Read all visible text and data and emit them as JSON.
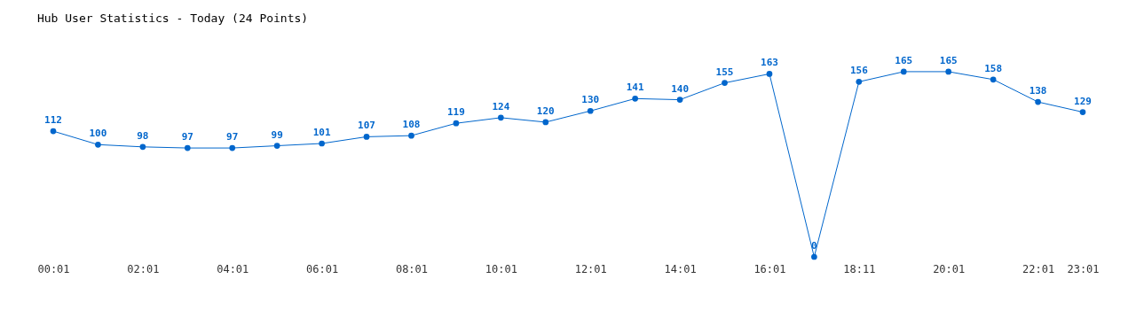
{
  "chart_data": {
    "type": "line",
    "title": "Hub User Statistics - Today (24 Points)",
    "categories": [
      "00:01",
      null,
      "02:01",
      null,
      "04:01",
      null,
      "06:01",
      null,
      "08:01",
      null,
      "10:01",
      null,
      "12:01",
      null,
      "14:01",
      null,
      "16:01",
      null,
      "18:11",
      null,
      "20:01",
      null,
      "22:01",
      "23:01"
    ],
    "series": [
      {
        "color": "#0066cc",
        "values": [
          112,
          100,
          98,
          97,
          97,
          99,
          101,
          107,
          108,
          119,
          124,
          120,
          130,
          141,
          140,
          155,
          163,
          0,
          156,
          165,
          165,
          158,
          138,
          129
        ]
      }
    ],
    "data_labels": true,
    "marker": "circle",
    "line_style": "solid"
  }
}
